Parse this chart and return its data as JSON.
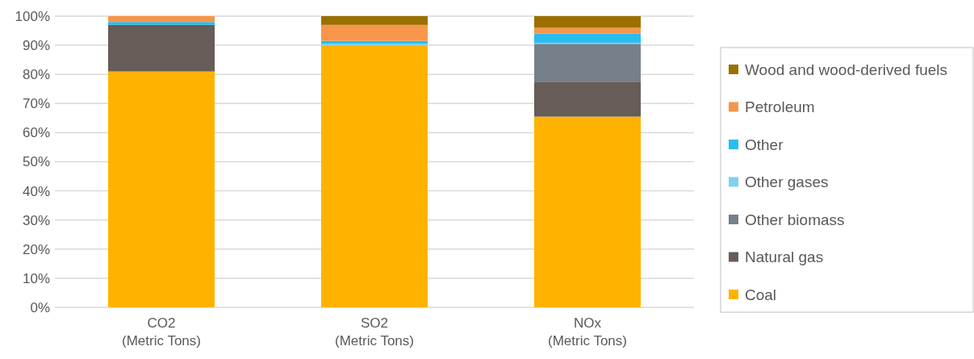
{
  "chart_data": {
    "type": "bar",
    "stacked": true,
    "categories": [
      "CO2\n(Metric Tons)",
      "SO2\n(Metric Tons)",
      "NOx\n(Metric Tons)"
    ],
    "series": [
      {
        "name": "Coal",
        "color": "#ffb300",
        "values": [
          81,
          90,
          65.5
        ]
      },
      {
        "name": "Natural gas",
        "color": "#665c58",
        "values": [
          16,
          0,
          12
        ]
      },
      {
        "name": "Other biomass",
        "color": "#76808a",
        "values": [
          0,
          0,
          13
        ]
      },
      {
        "name": "Other gases",
        "color": "#7fd2f0",
        "values": [
          0,
          0.5,
          0.3
        ]
      },
      {
        "name": "Other",
        "color": "#2bbcef",
        "values": [
          1,
          1,
          3.2
        ]
      },
      {
        "name": "Petroleum",
        "color": "#f7964a",
        "values": [
          2,
          5.5,
          2
        ]
      },
      {
        "name": "Wood and wood-derived fuels",
        "color": "#9b7000",
        "values": [
          0,
          3,
          4
        ]
      }
    ],
    "ylim": [
      0,
      100
    ],
    "yticks": [
      {
        "value": 0,
        "label": "0%"
      },
      {
        "value": 10,
        "label": "10%"
      },
      {
        "value": 20,
        "label": "20%"
      },
      {
        "value": 30,
        "label": "30%"
      },
      {
        "value": 40,
        "label": "40%"
      },
      {
        "value": 50,
        "label": "50%"
      },
      {
        "value": 60,
        "label": "60%"
      },
      {
        "value": 70,
        "label": "70%"
      },
      {
        "value": 80,
        "label": "80%"
      },
      {
        "value": 90,
        "label": "90%"
      },
      {
        "value": 100,
        "label": "100%"
      }
    ],
    "grid": "y",
    "legend": "right"
  }
}
